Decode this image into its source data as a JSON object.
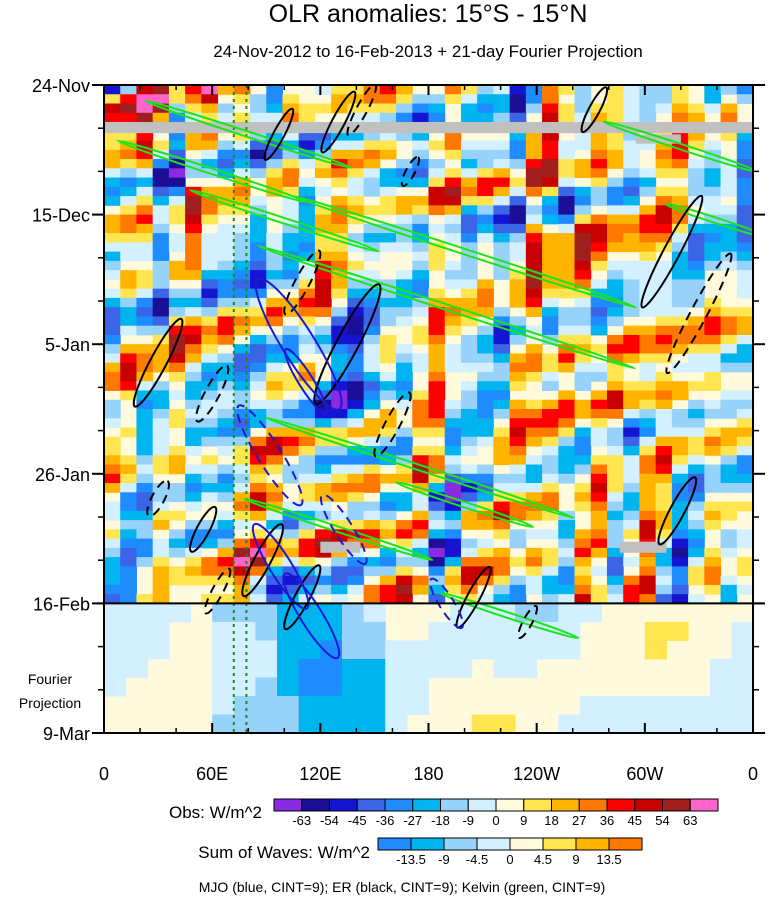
{
  "chart_data": {
    "type": "heatmap",
    "title": "OLR anomalies: 15°S - 15°N",
    "subtitle": "24-Nov-2012 to 16-Feb-2013 + 21-day Fourier Projection",
    "x_ticks": [
      {
        "lon": 0,
        "label": "0"
      },
      {
        "lon": 60,
        "label": "60E"
      },
      {
        "lon": 120,
        "label": "120E"
      },
      {
        "lon": 180,
        "label": "180"
      },
      {
        "lon": 240,
        "label": "120W"
      },
      {
        "lon": 300,
        "label": "60W"
      },
      {
        "lon": 360,
        "label": "0"
      }
    ],
    "x_range": [
      0,
      360
    ],
    "y_ticks": [
      {
        "day": 0,
        "label": "24-Nov"
      },
      {
        "day": 21,
        "label": "15-Dec"
      },
      {
        "day": 42,
        "label": "5-Jan"
      },
      {
        "day": 63,
        "label": "26-Jan"
      },
      {
        "day": 84,
        "label": "16-Feb"
      },
      {
        "day": 105,
        "label": "9-Mar"
      }
    ],
    "y_range_days": [
      0,
      105
    ],
    "observation_end_day": 84,
    "projection_label_line1": "Fourier",
    "projection_label_line2": "Projection",
    "obs_colorbar": {
      "label": "Obs: W/m^2",
      "levels": [
        "-63",
        "-54",
        "-45",
        "-36",
        "-27",
        "-18",
        "-9",
        "0",
        "9",
        "18",
        "27",
        "36",
        "45",
        "54",
        "63"
      ],
      "colors": [
        "#8a2be2",
        "#1a0f96",
        "#1414d2",
        "#3c64e6",
        "#1e8cff",
        "#00b4f0",
        "#96d2fa",
        "#d2f0ff",
        "#fffadc",
        "#ffe650",
        "#ffb400",
        "#ff7800",
        "#ff0000",
        "#c80000",
        "#a01e1e",
        "#ff64c8"
      ]
    },
    "waves_colorbar": {
      "label": "Sum of Waves: W/m^2",
      "levels": [
        "-13.5",
        "-9",
        "-4.5",
        "0",
        "4.5",
        "9",
        "13.5"
      ],
      "colors": [
        "#1e8cff",
        "#00b4f0",
        "#96d2fa",
        "#d2f0ff",
        "#fffadc",
        "#ffe650",
        "#ffb400",
        "#ff7800"
      ]
    },
    "footer": "MJO (blue, CINT=9); ER (black, CINT=9); Kelvin (green, CINT=9)",
    "wave_colors": {
      "mjo": "#1a1ad2",
      "er": "#000000",
      "kelvin": "#19e619",
      "missing": "#c0c0c0",
      "reference_lines": "#1a8a1a"
    },
    "reference_lines_lon": [
      72,
      79
    ],
    "mjo_contours": [
      {
        "lon": 108,
        "day": 42,
        "len_deg": 85,
        "wid_deg": 18,
        "dash": false
      },
      {
        "lon": 112,
        "day": 48,
        "len_deg": 42,
        "wid_deg": 8,
        "dash": false
      },
      {
        "lon": 98,
        "day": 78,
        "len_deg": 55,
        "wid_deg": 12,
        "dash": false
      },
      {
        "lon": 115,
        "day": 86,
        "len_deg": 55,
        "wid_deg": 12,
        "dash": false
      },
      {
        "lon": 92,
        "day": 60,
        "len_deg": 65,
        "wid_deg": 13,
        "dash": true
      },
      {
        "lon": 133,
        "day": 72,
        "len_deg": 45,
        "wid_deg": 10,
        "dash": true
      },
      {
        "lon": 190,
        "day": 84,
        "len_deg": 32,
        "wid_deg": 8,
        "dash": true
      }
    ],
    "er_contours": [
      {
        "lon": 130,
        "day": 6,
        "len_deg": 38,
        "wid_deg": 7,
        "dash": false
      },
      {
        "lon": 97,
        "day": 8,
        "len_deg": 32,
        "wid_deg": 6,
        "dash": false
      },
      {
        "lon": 143,
        "day": 4,
        "len_deg": 32,
        "wid_deg": 6,
        "dash": true
      },
      {
        "lon": 170,
        "day": 14,
        "len_deg": 18,
        "wid_deg": 5,
        "dash": true
      },
      {
        "lon": 30,
        "day": 45,
        "len_deg": 55,
        "wid_deg": 9,
        "dash": false
      },
      {
        "lon": 135,
        "day": 42,
        "len_deg": 75,
        "wid_deg": 12,
        "dash": false
      },
      {
        "lon": 110,
        "day": 32,
        "len_deg": 40,
        "wid_deg": 8,
        "dash": true
      },
      {
        "lon": 160,
        "day": 55,
        "len_deg": 40,
        "wid_deg": 8,
        "dash": true
      },
      {
        "lon": 60,
        "day": 50,
        "len_deg": 35,
        "wid_deg": 8,
        "dash": true
      },
      {
        "lon": 30,
        "day": 67,
        "len_deg": 22,
        "wid_deg": 7,
        "dash": true
      },
      {
        "lon": 55,
        "day": 72,
        "len_deg": 28,
        "wid_deg": 7,
        "dash": false
      },
      {
        "lon": 88,
        "day": 77,
        "len_deg": 45,
        "wid_deg": 9,
        "dash": false
      },
      {
        "lon": 110,
        "day": 83,
        "len_deg": 40,
        "wid_deg": 8,
        "dash": false
      },
      {
        "lon": 63,
        "day": 82,
        "len_deg": 28,
        "wid_deg": 6,
        "dash": true
      },
      {
        "lon": 205,
        "day": 83,
        "len_deg": 38,
        "wid_deg": 7,
        "dash": false
      },
      {
        "lon": 235,
        "day": 87,
        "len_deg": 20,
        "wid_deg": 5,
        "dash": true
      },
      {
        "lon": 315,
        "day": 27,
        "len_deg": 70,
        "wid_deg": 9,
        "dash": false
      },
      {
        "lon": 330,
        "day": 37,
        "len_deg": 75,
        "wid_deg": 9,
        "dash": true
      },
      {
        "lon": 318,
        "day": 69,
        "len_deg": 42,
        "wid_deg": 8,
        "dash": false
      },
      {
        "lon": 272,
        "day": 4,
        "len_deg": 28,
        "wid_deg": 6,
        "dash": false
      }
    ],
    "kelvin_contours": [
      {
        "lon": 200,
        "day": 27,
        "len_deg": 200,
        "wid_deg": 3
      },
      {
        "lon": 190,
        "day": 36,
        "len_deg": 220,
        "wid_deg": 3
      },
      {
        "lon": 100,
        "day": 22,
        "len_deg": 110,
        "wid_deg": 3
      },
      {
        "lon": 80,
        "day": 8,
        "len_deg": 120,
        "wid_deg": 3
      },
      {
        "lon": 60,
        "day": 14,
        "len_deg": 110,
        "wid_deg": 3
      },
      {
        "lon": 175,
        "day": 62,
        "len_deg": 180,
        "wid_deg": 3
      },
      {
        "lon": 200,
        "day": 68,
        "len_deg": 80,
        "wid_deg": 3
      },
      {
        "lon": 130,
        "day": 72,
        "len_deg": 110,
        "wid_deg": 3
      },
      {
        "lon": 225,
        "day": 86,
        "len_deg": 80,
        "wid_deg": 3
      },
      {
        "lon": 320,
        "day": 10,
        "len_deg": 90,
        "wid_deg": 3
      },
      {
        "lon": 340,
        "day": 22,
        "len_deg": 60,
        "wid_deg": 3
      }
    ]
  }
}
